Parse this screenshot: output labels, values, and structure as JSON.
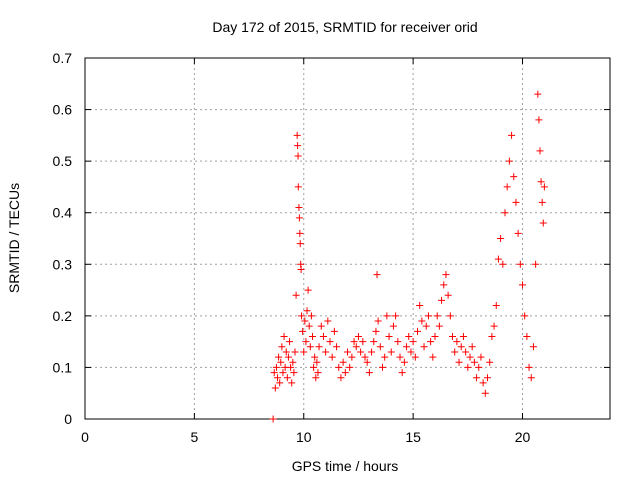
{
  "chart_data": {
    "type": "scatter",
    "title": "Day 172 of 2015, SRMTID for receiver orid",
    "xlabel": "GPS time / hours",
    "ylabel": "SRMTID / TECUs",
    "xlim": [
      0,
      24
    ],
    "ylim": [
      0,
      0.7
    ],
    "xticks": [
      0,
      5,
      10,
      15,
      20
    ],
    "xtick_labels": [
      "0",
      "5",
      "10",
      "15",
      "20"
    ],
    "yticks": [
      0,
      0.1,
      0.2,
      0.3,
      0.4,
      0.5,
      0.6,
      0.7
    ],
    "ytick_labels": [
      "0",
      "0.1",
      "0.2",
      "0.3",
      "0.4",
      "0.5",
      "0.6",
      "0.7"
    ],
    "grid": true,
    "marker": "+",
    "series": [
      {
        "name": "SRMTID",
        "color": "#ff0000",
        "points": [
          [
            8.6,
            0.0
          ],
          [
            8.65,
            0.09
          ],
          [
            8.7,
            0.06
          ],
          [
            8.75,
            0.1
          ],
          [
            8.8,
            0.08
          ],
          [
            8.85,
            0.12
          ],
          [
            8.9,
            0.07
          ],
          [
            8.95,
            0.11
          ],
          [
            9.0,
            0.14
          ],
          [
            9.05,
            0.09
          ],
          [
            9.1,
            0.16
          ],
          [
            9.15,
            0.1
          ],
          [
            9.2,
            0.13
          ],
          [
            9.25,
            0.08
          ],
          [
            9.3,
            0.12
          ],
          [
            9.35,
            0.15
          ],
          [
            9.4,
            0.1
          ],
          [
            9.45,
            0.07
          ],
          [
            9.5,
            0.11
          ],
          [
            9.55,
            0.09
          ],
          [
            9.6,
            0.13
          ],
          [
            9.65,
            0.24
          ],
          [
            9.7,
            0.55
          ],
          [
            9.72,
            0.53
          ],
          [
            9.74,
            0.51
          ],
          [
            9.75,
            0.45
          ],
          [
            9.78,
            0.41
          ],
          [
            9.8,
            0.39
          ],
          [
            9.82,
            0.36
          ],
          [
            9.84,
            0.34
          ],
          [
            9.86,
            0.3
          ],
          [
            9.88,
            0.29
          ],
          [
            9.9,
            0.2
          ],
          [
            9.95,
            0.17
          ],
          [
            10.0,
            0.13
          ],
          [
            10.05,
            0.19
          ],
          [
            10.1,
            0.15
          ],
          [
            10.15,
            0.21
          ],
          [
            10.2,
            0.25
          ],
          [
            10.25,
            0.18
          ],
          [
            10.3,
            0.14
          ],
          [
            10.35,
            0.2
          ],
          [
            10.4,
            0.16
          ],
          [
            10.45,
            0.1
          ],
          [
            10.5,
            0.12
          ],
          [
            10.55,
            0.08
          ],
          [
            10.6,
            0.11
          ],
          [
            10.65,
            0.09
          ],
          [
            10.7,
            0.14
          ],
          [
            10.8,
            0.18
          ],
          [
            10.9,
            0.16
          ],
          [
            11.0,
            0.13
          ],
          [
            11.1,
            0.19
          ],
          [
            11.2,
            0.15
          ],
          [
            11.3,
            0.12
          ],
          [
            11.4,
            0.17
          ],
          [
            11.5,
            0.14
          ],
          [
            11.6,
            0.1
          ],
          [
            11.7,
            0.08
          ],
          [
            11.8,
            0.11
          ],
          [
            11.9,
            0.09
          ],
          [
            12.0,
            0.13
          ],
          [
            12.1,
            0.1
          ],
          [
            12.2,
            0.12
          ],
          [
            12.3,
            0.15
          ],
          [
            12.4,
            0.14
          ],
          [
            12.5,
            0.16
          ],
          [
            12.6,
            0.13
          ],
          [
            12.7,
            0.15
          ],
          [
            12.8,
            0.12
          ],
          [
            12.9,
            0.11
          ],
          [
            13.0,
            0.09
          ],
          [
            13.1,
            0.13
          ],
          [
            13.2,
            0.15
          ],
          [
            13.3,
            0.17
          ],
          [
            13.35,
            0.28
          ],
          [
            13.4,
            0.19
          ],
          [
            13.5,
            0.14
          ],
          [
            13.6,
            0.1
          ],
          [
            13.7,
            0.12
          ],
          [
            13.8,
            0.2
          ],
          [
            13.9,
            0.16
          ],
          [
            14.0,
            0.13
          ],
          [
            14.1,
            0.18
          ],
          [
            14.2,
            0.2
          ],
          [
            14.3,
            0.15
          ],
          [
            14.4,
            0.12
          ],
          [
            14.5,
            0.09
          ],
          [
            14.6,
            0.11
          ],
          [
            14.7,
            0.14
          ],
          [
            14.8,
            0.16
          ],
          [
            14.9,
            0.13
          ],
          [
            15.0,
            0.15
          ],
          [
            15.1,
            0.12
          ],
          [
            15.2,
            0.17
          ],
          [
            15.3,
            0.22
          ],
          [
            15.4,
            0.19
          ],
          [
            15.5,
            0.14
          ],
          [
            15.6,
            0.18
          ],
          [
            15.7,
            0.2
          ],
          [
            15.8,
            0.15
          ],
          [
            15.9,
            0.12
          ],
          [
            16.0,
            0.16
          ],
          [
            16.1,
            0.2
          ],
          [
            16.2,
            0.18
          ],
          [
            16.3,
            0.23
          ],
          [
            16.4,
            0.26
          ],
          [
            16.5,
            0.28
          ],
          [
            16.6,
            0.24
          ],
          [
            16.7,
            0.2
          ],
          [
            16.8,
            0.16
          ],
          [
            16.9,
            0.13
          ],
          [
            17.0,
            0.15
          ],
          [
            17.1,
            0.11
          ],
          [
            17.2,
            0.14
          ],
          [
            17.3,
            0.16
          ],
          [
            17.4,
            0.13
          ],
          [
            17.5,
            0.1
          ],
          [
            17.6,
            0.12
          ],
          [
            17.7,
            0.14
          ],
          [
            17.8,
            0.11
          ],
          [
            17.9,
            0.08
          ],
          [
            18.0,
            0.1
          ],
          [
            18.1,
            0.12
          ],
          [
            18.2,
            0.07
          ],
          [
            18.3,
            0.05
          ],
          [
            18.4,
            0.08
          ],
          [
            18.5,
            0.11
          ],
          [
            18.6,
            0.16
          ],
          [
            18.7,
            0.18
          ],
          [
            18.8,
            0.22
          ],
          [
            18.9,
            0.31
          ],
          [
            19.0,
            0.35
          ],
          [
            19.1,
            0.3
          ],
          [
            19.2,
            0.4
          ],
          [
            19.3,
            0.45
          ],
          [
            19.4,
            0.5
          ],
          [
            19.5,
            0.55
          ],
          [
            19.6,
            0.47
          ],
          [
            19.7,
            0.42
          ],
          [
            19.8,
            0.36
          ],
          [
            19.9,
            0.3
          ],
          [
            20.0,
            0.26
          ],
          [
            20.1,
            0.2
          ],
          [
            20.2,
            0.16
          ],
          [
            20.3,
            0.1
          ],
          [
            20.4,
            0.08
          ],
          [
            20.5,
            0.14
          ],
          [
            20.6,
            0.3
          ],
          [
            20.7,
            0.63
          ],
          [
            20.75,
            0.58
          ],
          [
            20.8,
            0.52
          ],
          [
            20.85,
            0.46
          ],
          [
            20.9,
            0.42
          ],
          [
            20.95,
            0.38
          ],
          [
            21.0,
            0.45
          ]
        ]
      }
    ]
  }
}
